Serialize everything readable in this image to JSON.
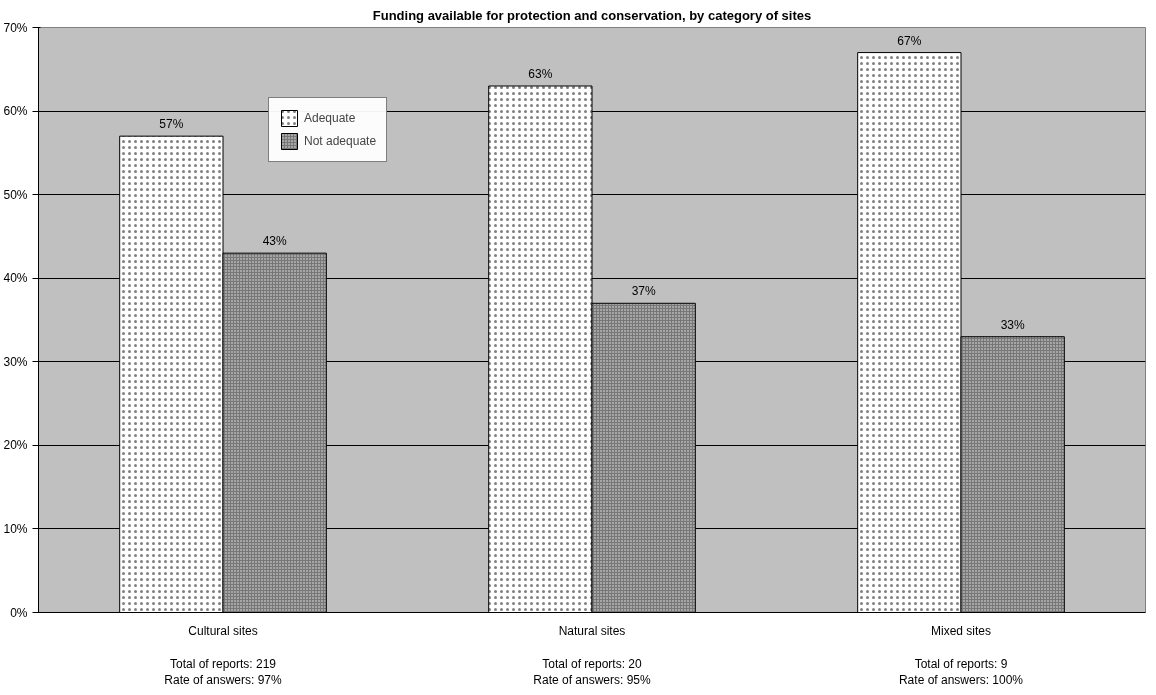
{
  "chart_data": {
    "type": "bar",
    "title": "Funding available for protection and conservation, by category of sites",
    "categories": [
      "Cultural sites",
      "Natural sites",
      "Mixed sites"
    ],
    "series": [
      {
        "name": "Adequate",
        "color": "#ffffff",
        "values": [
          57,
          63,
          67
        ],
        "value_labels": [
          "57%",
          "63%",
          "67%"
        ]
      },
      {
        "name": "Not adequate",
        "color": "#a6a6a6",
        "values": [
          43,
          37,
          33
        ],
        "value_labels": [
          "43%",
          "37%",
          "33%"
        ]
      }
    ],
    "ylim": [
      0,
      70
    ],
    "yticks": [
      {
        "value": 0,
        "label": "0%"
      },
      {
        "value": 10,
        "label": "10%"
      },
      {
        "value": 20,
        "label": "20%"
      },
      {
        "value": 30,
        "label": "30%"
      },
      {
        "value": 40,
        "label": "40%"
      },
      {
        "value": 50,
        "label": "50%"
      },
      {
        "value": 60,
        "label": "60%"
      },
      {
        "value": 70,
        "label": "70%"
      }
    ],
    "grid": "y",
    "legend": "top left",
    "annotations": [
      "Total of reports: 219\nRate of answers: 97%",
      "Total of reports: 20\nRate of answers: 95%",
      "Total of reports: 9\nRate of answers: 100%"
    ]
  }
}
